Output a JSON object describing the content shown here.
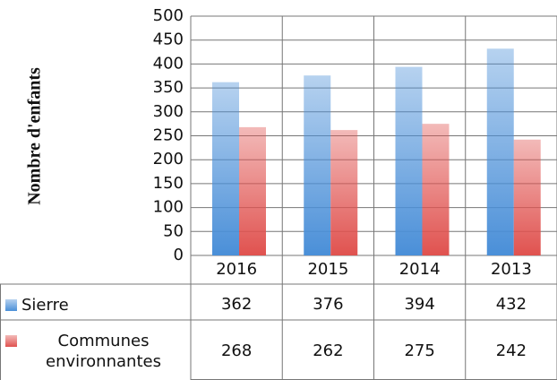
{
  "chart_data": {
    "type": "bar",
    "y_label": "Nombre d'enfants",
    "categories": [
      "2016",
      "2015",
      "2014",
      "2013"
    ],
    "series": [
      {
        "name": "Sierre",
        "color": "#4a8fd8",
        "values": [
          362,
          376,
          394,
          432
        ]
      },
      {
        "name": "Communes environnantes",
        "color": "#e0524f",
        "values": [
          268,
          262,
          275,
          242
        ]
      }
    ],
    "ylim": [
      0,
      500
    ],
    "yticks": [
      0,
      50,
      100,
      150,
      200,
      250,
      300,
      350,
      400,
      450,
      500
    ],
    "grid": true
  }
}
